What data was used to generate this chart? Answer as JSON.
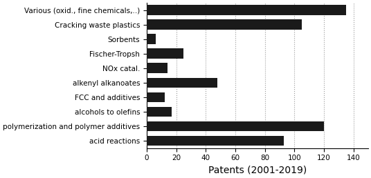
{
  "categories": [
    "Various (oxid., fine chemicals,..)",
    "Cracking waste plastics",
    "Sorbents",
    "Fischer-Tropsh",
    "NOx catal.",
    "alkenyl alkanoates",
    "FCC and additives",
    "alcohols to olefins",
    "polymerization and polymer additives",
    "acid reactions"
  ],
  "values": [
    135,
    105,
    6,
    25,
    14,
    48,
    12,
    17,
    120,
    93
  ],
  "bar_color": "#1a1a1a",
  "xlabel": "Patents (2001-2019)",
  "xlim": [
    0,
    150
  ],
  "xticks": [
    0,
    20,
    40,
    60,
    80,
    100,
    120,
    140
  ],
  "grid_color": "#999999",
  "background_color": "#ffffff",
  "bar_height": 0.7,
  "xlabel_fontsize": 10,
  "tick_fontsize": 7.5
}
